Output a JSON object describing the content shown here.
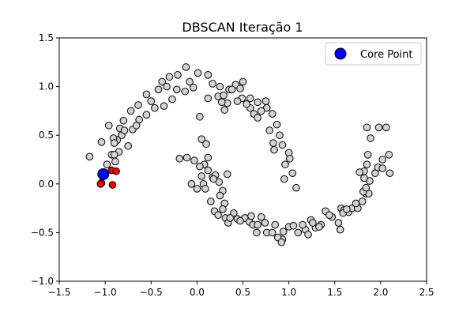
{
  "chart_data": {
    "type": "scatter",
    "title": "DBSCAN Iteração 1",
    "xlabel": "",
    "ylabel": "",
    "xlim": [
      -1.5,
      2.5
    ],
    "ylim": [
      -1.0,
      1.5
    ],
    "xticks": [
      "−1.5",
      "−1.0",
      "−0.5",
      "0.0",
      "0.5",
      "1.0",
      "1.5",
      "2.0",
      "2.5"
    ],
    "yticks": [
      "−1.0",
      "−0.5",
      "0.0",
      "0.5",
      "1.0",
      "1.5"
    ],
    "grid": false,
    "legend": {
      "placement": "top-right",
      "entries": [
        {
          "label": "Core Point",
          "color": "#0000ff"
        }
      ]
    },
    "colors": {
      "default": "#d3d3d3",
      "neighbor": "#ff0000",
      "core": "#0000ff",
      "edge": "#000000"
    },
    "series": [
      {
        "role": "default",
        "points": [
          [
            -0.72,
            0.75
          ],
          [
            -0.55,
            0.92
          ],
          [
            -0.42,
            0.97
          ],
          [
            -0.38,
            1.05
          ],
          [
            -0.3,
            1.1
          ],
          [
            -0.21,
            1.12
          ],
          [
            -0.12,
            1.2
          ],
          [
            -0.08,
            1.05
          ],
          [
            -0.04,
            0.99
          ],
          [
            0.01,
            1.14
          ],
          [
            0.12,
            1.12
          ],
          [
            0.17,
            1.03
          ],
          [
            0.25,
            1.0
          ],
          [
            0.35,
            0.97
          ],
          [
            0.42,
            1.02
          ],
          [
            0.5,
            1.05
          ],
          [
            0.58,
            0.88
          ],
          [
            0.66,
            0.84
          ],
          [
            0.76,
            0.78
          ],
          [
            0.82,
            0.72
          ],
          [
            0.87,
            0.61
          ],
          [
            0.9,
            0.5
          ],
          [
            0.93,
            0.4
          ],
          [
            1.0,
            0.32
          ],
          [
            1.01,
            0.26
          ],
          [
            0.96,
            0.2
          ],
          [
            1.04,
            0.11
          ],
          [
            0.95,
            0.05
          ],
          [
            1.08,
            -0.04
          ],
          [
            -0.33,
            1.0
          ],
          [
            -0.22,
            0.97
          ],
          [
            -0.13,
            0.95
          ],
          [
            -0.27,
            0.87
          ],
          [
            -0.36,
            0.8
          ],
          [
            -0.46,
            0.78
          ],
          [
            -0.55,
            0.71
          ],
          [
            -0.63,
            0.66
          ],
          [
            -0.7,
            0.56
          ],
          [
            -0.82,
            0.5
          ],
          [
            -0.87,
            0.45
          ],
          [
            -0.75,
            0.39
          ],
          [
            -0.85,
            0.33
          ],
          [
            -0.93,
            0.3
          ],
          [
            -0.98,
            0.2
          ],
          [
            -0.89,
            0.23
          ],
          [
            -0.8,
            0.65
          ],
          [
            -0.84,
            0.57
          ],
          [
            -0.91,
            0.47
          ],
          [
            -0.96,
            0.6
          ],
          [
            -1.04,
            0.43
          ],
          [
            -1.17,
            0.28
          ],
          [
            0.03,
            0.69
          ],
          [
            0.05,
            0.46
          ],
          [
            0.1,
            0.41
          ],
          [
            0.12,
            0.27
          ],
          [
            0.08,
            0.2
          ],
          [
            0.03,
            0.18
          ],
          [
            -0.03,
            0.24
          ],
          [
            -0.11,
            0.27
          ],
          [
            0.12,
            0.14
          ],
          [
            0.17,
            0.07
          ],
          [
            0.2,
            0.09
          ],
          [
            0.24,
            0.02
          ],
          [
            0.33,
            0.1
          ],
          [
            0.28,
            -0.07
          ],
          [
            0.25,
            -0.12
          ],
          [
            0.3,
            -0.2
          ],
          [
            0.19,
            -0.28
          ],
          [
            0.23,
            -0.32
          ],
          [
            0.31,
            -0.35
          ],
          [
            0.34,
            -0.4
          ],
          [
            0.4,
            -0.3
          ],
          [
            0.44,
            -0.36
          ],
          [
            0.52,
            -0.35
          ],
          [
            0.57,
            -0.39
          ],
          [
            0.61,
            -0.42
          ],
          [
            0.66,
            -0.42
          ],
          [
            0.74,
            -0.4
          ],
          [
            0.76,
            -0.5
          ],
          [
            0.65,
            -0.5
          ],
          [
            0.85,
            -0.42
          ],
          [
            0.93,
            -0.57
          ],
          [
            0.94,
            -0.49
          ],
          [
            1.0,
            -0.44
          ],
          [
            1.05,
            -0.43
          ],
          [
            1.1,
            -0.5
          ],
          [
            1.18,
            -0.47
          ],
          [
            1.24,
            -0.37
          ],
          [
            1.29,
            -0.45
          ],
          [
            1.35,
            -0.42
          ],
          [
            1.4,
            -0.28
          ],
          [
            1.47,
            -0.34
          ],
          [
            1.54,
            -0.4
          ],
          [
            1.56,
            -0.47
          ],
          [
            1.57,
            -0.25
          ],
          [
            1.6,
            -0.27
          ],
          [
            1.65,
            -0.29
          ],
          [
            1.69,
            -0.25
          ],
          [
            1.75,
            -0.25
          ],
          [
            1.8,
            -0.18
          ],
          [
            1.84,
            -0.1
          ],
          [
            1.87,
            -0.1
          ],
          [
            1.88,
            0.03
          ],
          [
            1.94,
            0.11
          ],
          [
            1.97,
            0.17
          ],
          [
            2.02,
            0.16
          ],
          [
            2.09,
            0.3
          ],
          [
            2.1,
            0.11
          ],
          [
            2.02,
            0.25
          ],
          [
            1.98,
            0.58
          ],
          [
            2.06,
            0.58
          ],
          [
            1.85,
            0.58
          ],
          [
            1.89,
            0.47
          ],
          [
            1.86,
            0.3
          ],
          [
            1.85,
            0.2
          ],
          [
            1.82,
            0.13
          ],
          [
            1.82,
            0.06
          ],
          [
            1.81,
            -0.08
          ],
          [
            1.84,
            -0.04
          ],
          [
            1.77,
            0.12
          ],
          [
            0.38,
            0.97
          ],
          [
            0.47,
            0.98
          ],
          [
            0.58,
            0.78
          ],
          [
            0.49,
            0.88
          ],
          [
            0.33,
            0.83
          ],
          [
            0.7,
            0.75
          ],
          [
            0.75,
            0.85
          ],
          [
            0.79,
            0.55
          ],
          [
            0.83,
            0.42
          ],
          [
            0.84,
            0.35
          ],
          [
            -0.5,
            0.85
          ],
          [
            -0.64,
            0.81
          ],
          [
            -0.66,
            0.6
          ],
          [
            -0.9,
            0.42
          ],
          [
            -0.79,
            0.55
          ],
          [
            -0.9,
            0.3
          ],
          [
            -0.19,
            0.26
          ],
          [
            0.0,
            -0.05
          ],
          [
            0.07,
            0.0
          ],
          [
            0.05,
            0.08
          ],
          [
            0.09,
            -0.05
          ],
          [
            0.18,
            0.05
          ],
          [
            0.15,
            -0.18
          ],
          [
            0.28,
            -0.26
          ],
          [
            0.36,
            -0.35
          ],
          [
            0.47,
            -0.38
          ],
          [
            0.59,
            -0.33
          ],
          [
            0.7,
            -0.34
          ],
          [
            0.82,
            -0.5
          ],
          [
            0.88,
            -0.55
          ],
          [
            0.92,
            -0.6
          ],
          [
            1.15,
            -0.42
          ],
          [
            1.21,
            -0.52
          ],
          [
            1.26,
            -0.4
          ],
          [
            1.33,
            -0.44
          ],
          [
            1.44,
            -0.32
          ],
          [
            1.59,
            -0.3
          ],
          [
            1.63,
            -0.26
          ],
          [
            1.73,
            -0.2
          ],
          [
            -0.06,
            0.0
          ],
          [
            0.3,
            0.76
          ],
          [
            0.23,
            0.9
          ],
          [
            0.29,
            0.91
          ],
          [
            0.27,
            0.84
          ],
          [
            0.12,
            0.88
          ],
          [
            0.44,
            0.85
          ],
          [
            0.54,
            0.82
          ],
          [
            0.62,
            0.72
          ],
          [
            0.66,
            0.68
          ]
        ]
      },
      {
        "role": "neighbor",
        "points": [
          [
            -0.93,
            0.14
          ],
          [
            -0.88,
            0.13
          ],
          [
            -1.04,
            0.01
          ],
          [
            -1.05,
            0.0
          ],
          [
            -0.92,
            -0.01
          ]
        ]
      },
      {
        "role": "core",
        "name": "Core Point",
        "points": [
          [
            -1.02,
            0.1
          ]
        ]
      }
    ]
  }
}
